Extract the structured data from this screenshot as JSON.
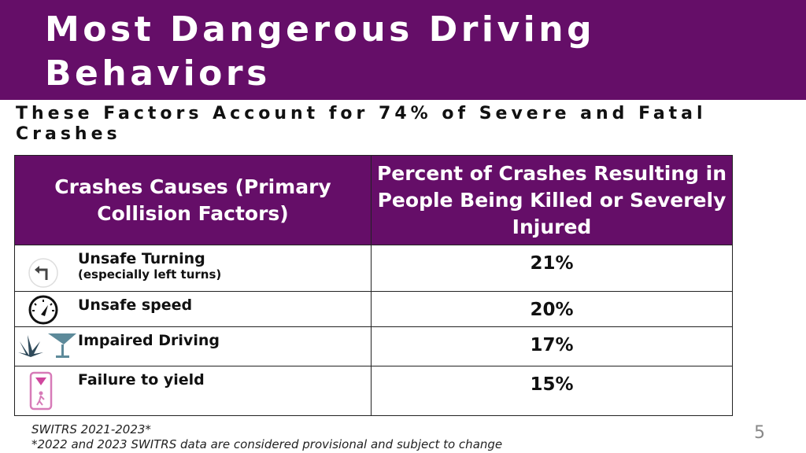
{
  "title": "Most Dangerous Driving Behaviors",
  "subtitle": "These Factors Account for 74% of Severe and Fatal Crashes",
  "table": {
    "headers": [
      "Crashes Causes (Primary Collision Factors)",
      "Percent of Crashes Resulting in People Being Killed or Severely Injured"
    ],
    "rows": [
      {
        "cause": "Unsafe Turning",
        "note": "(especially left turns)",
        "percent": "21%",
        "icon": "left-turn-icon"
      },
      {
        "cause": "Unsafe speed",
        "percent": "20%",
        "icon": "speedometer-icon"
      },
      {
        "cause": "Impaired Driving",
        "percent": "17%",
        "icon": "cannabis-cocktail-icon"
      },
      {
        "cause": "Failure to yield",
        "percent": "15%",
        "icon": "yield-pedestrian-icon"
      }
    ]
  },
  "footnotes": [
    "SWITRS 2021-2023*",
    "*2022 and 2023 SWITRS data are considered provisional and subject to change"
  ],
  "page_number": "5",
  "colors": {
    "brand": "#650e68"
  }
}
